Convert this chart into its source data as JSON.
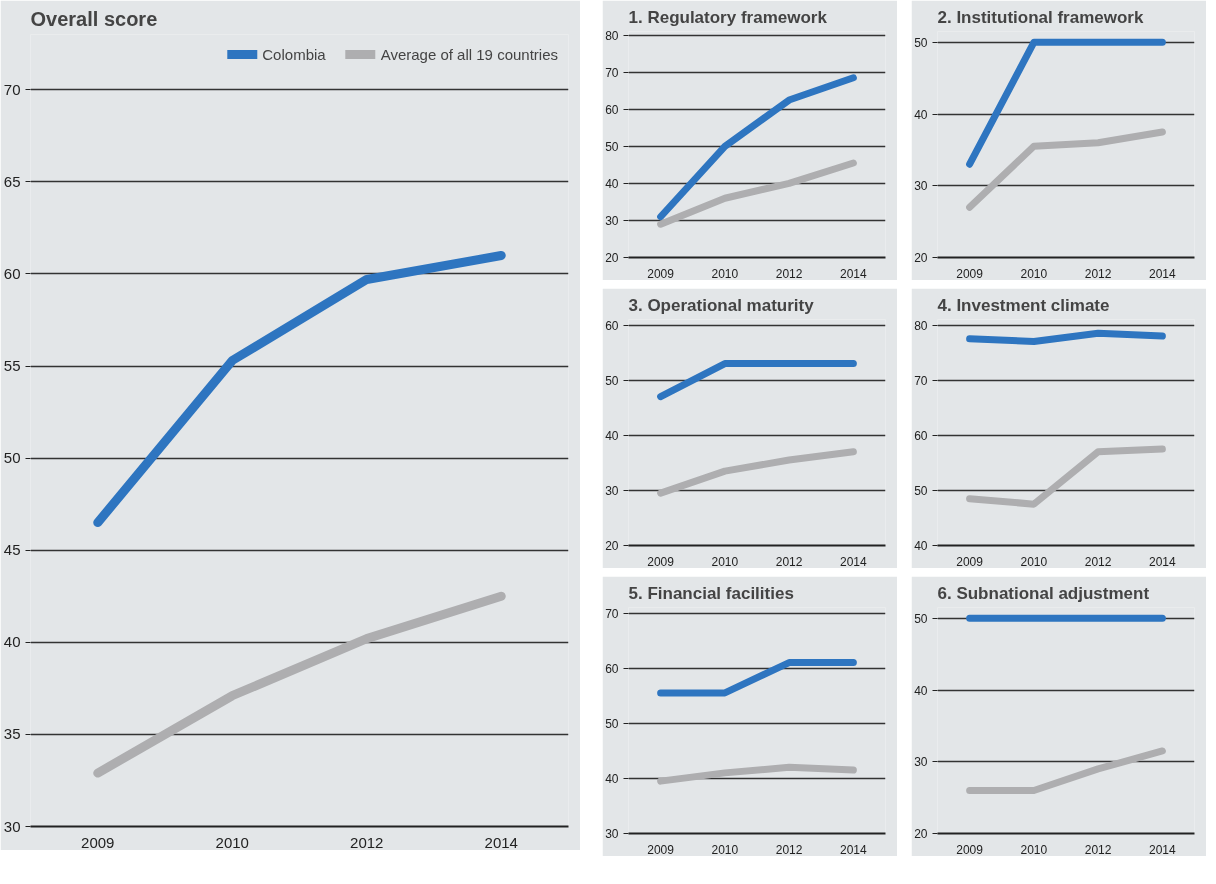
{
  "chart_data": [
    {
      "type": "line",
      "title": "Overall score",
      "categories": [
        "2009",
        "2010",
        "2012",
        "2014"
      ],
      "ylim": [
        30,
        73
      ],
      "yticks": [
        30,
        35,
        40,
        45,
        50,
        55,
        60,
        65,
        70
      ],
      "grid": "y",
      "legend": "top right",
      "series": [
        {
          "name": "Colombia",
          "color": "#2e75c0",
          "values": [
            46.5,
            55.3,
            59.7,
            61
          ]
        },
        {
          "name": "Average of all 19 countries",
          "color": "#aeaeb0",
          "values": [
            32.9,
            37.1,
            40.2,
            42.5
          ]
        }
      ]
    },
    {
      "type": "line",
      "title": "1. Regulatory framework",
      "categories": [
        "2009",
        "2010",
        "2012",
        "2014"
      ],
      "ylim": [
        20,
        81
      ],
      "yticks": [
        20,
        30,
        40,
        50,
        60,
        70,
        80
      ],
      "grid": "y",
      "series": [
        {
          "color": "#2e75c0",
          "values": [
            31,
            50,
            62.5,
            68.5
          ]
        },
        {
          "color": "#aeaeb0",
          "values": [
            29,
            36,
            40,
            45.5
          ]
        }
      ]
    },
    {
      "type": "line",
      "title": "2. Institutional framework",
      "categories": [
        "2009",
        "2010",
        "2012",
        "2014"
      ],
      "ylim": [
        20,
        51.5
      ],
      "yticks": [
        20,
        30,
        40,
        50
      ],
      "grid": "y",
      "series": [
        {
          "color": "#2e75c0",
          "values": [
            33,
            50,
            50,
            50
          ]
        },
        {
          "color": "#aeaeb0",
          "values": [
            27,
            35.5,
            36,
            37.5
          ]
        }
      ]
    },
    {
      "type": "line",
      "title": "3. Operational maturity",
      "categories": [
        "2009",
        "2010",
        "2012",
        "2014"
      ],
      "ylim": [
        20,
        61
      ],
      "yticks": [
        20,
        30,
        40,
        50,
        60
      ],
      "grid": "y",
      "series": [
        {
          "color": "#2e75c0",
          "values": [
            47,
            53,
            53,
            53
          ]
        },
        {
          "color": "#aeaeb0",
          "values": [
            29.5,
            33.5,
            35.5,
            37
          ]
        }
      ]
    },
    {
      "type": "line",
      "title": "4. Investment climate",
      "categories": [
        "2009",
        "2010",
        "2012",
        "2014"
      ],
      "ylim": [
        40,
        81
      ],
      "yticks": [
        40,
        50,
        60,
        70,
        80
      ],
      "grid": "y",
      "series": [
        {
          "color": "#2e75c0",
          "values": [
            77.5,
            77,
            78.5,
            78
          ]
        },
        {
          "color": "#aeaeb0",
          "values": [
            48.5,
            47.5,
            57,
            57.5
          ]
        }
      ]
    },
    {
      "type": "line",
      "title": "5. Financial facilities",
      "categories": [
        "2009",
        "2010",
        "2012",
        "2014"
      ],
      "ylim": [
        30,
        71
      ],
      "yticks": [
        30,
        40,
        50,
        60,
        70
      ],
      "grid": "y",
      "series": [
        {
          "color": "#2e75c0",
          "values": [
            55.5,
            55.5,
            61,
            61
          ]
        },
        {
          "color": "#aeaeb0",
          "values": [
            39.5,
            41,
            42,
            41.5
          ]
        }
      ]
    },
    {
      "type": "line",
      "title": "6. Subnational adjustment",
      "categories": [
        "2009",
        "2010",
        "2012",
        "2014"
      ],
      "ylim": [
        20,
        51.5
      ],
      "yticks": [
        20,
        30,
        40,
        50
      ],
      "grid": "y",
      "series": [
        {
          "color": "#2e75c0",
          "values": [
            50,
            50,
            50,
            50
          ]
        },
        {
          "color": "#aeaeb0",
          "values": [
            26,
            26,
            29,
            31.5
          ]
        }
      ]
    }
  ]
}
